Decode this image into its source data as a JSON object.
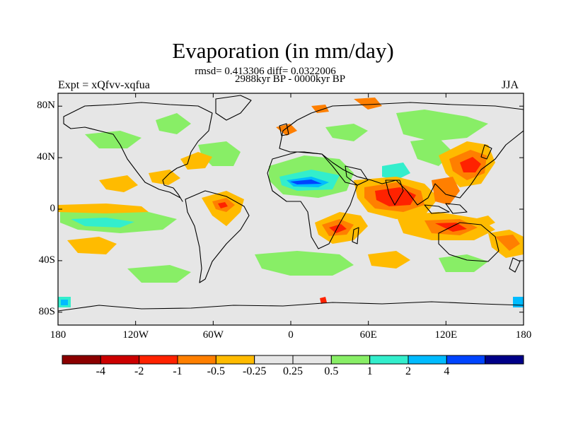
{
  "title": "Evaporation (in mm/day)",
  "stats": "rmsd= 0.413306 diff= 0.0322006",
  "period": "2988kyr BP - 0000kyr BP",
  "experiment": "Expt = xQfvv-xqfua",
  "season": "JJA",
  "map": {
    "lon_range": [
      -180,
      180
    ],
    "lat_range": [
      -90,
      90
    ],
    "background_color": "#e6e6e6",
    "lat_ticks": [
      {
        "lat": 80,
        "label": "80N"
      },
      {
        "lat": 40,
        "label": "40N"
      },
      {
        "lat": 0,
        "label": "0"
      },
      {
        "lat": -40,
        "label": "40S"
      },
      {
        "lat": -80,
        "label": "80S"
      }
    ],
    "lon_ticks": [
      {
        "lon": -180,
        "label": "180"
      },
      {
        "lon": -120,
        "label": "120W"
      },
      {
        "lon": -60,
        "label": "60W"
      },
      {
        "lon": 0,
        "label": "0"
      },
      {
        "lon": 60,
        "label": "60E"
      },
      {
        "lon": 120,
        "label": "120E"
      },
      {
        "lon": 180,
        "label": "180"
      }
    ]
  },
  "colorbar": {
    "colors": [
      "#8b0000",
      "#cc0000",
      "#ff2200",
      "#ff7f00",
      "#ffbb00",
      "#e6e6e6",
      "#e6e6e6",
      "#88ee66",
      "#33eecc",
      "#00bbff",
      "#0044ff",
      "#000088"
    ],
    "labels": [
      "-4",
      "-2",
      "-1",
      "-0.5",
      "-0.25",
      "0.25",
      "0.5",
      "1",
      "2",
      "4"
    ]
  }
}
